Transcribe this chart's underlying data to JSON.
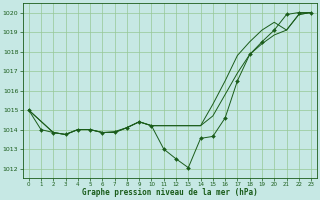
{
  "title": "Graphe pression niveau de la mer (hPa)",
  "background_color": "#c6e8e4",
  "grid_color": "#96c896",
  "line_color": "#1a5c1a",
  "xlim": [
    -0.5,
    23.5
  ],
  "ylim": [
    1011.5,
    1020.5
  ],
  "yticks": [
    1012,
    1013,
    1014,
    1015,
    1016,
    1017,
    1018,
    1019,
    1020
  ],
  "xticks": [
    0,
    1,
    2,
    3,
    4,
    5,
    6,
    7,
    8,
    9,
    10,
    11,
    12,
    13,
    14,
    15,
    16,
    17,
    18,
    19,
    20,
    21,
    22,
    23
  ],
  "series1": {
    "x": [
      0,
      1,
      2,
      3,
      4,
      5,
      6,
      7,
      8,
      9,
      10,
      11,
      12,
      13,
      14,
      15,
      16,
      17,
      18,
      19,
      20,
      21,
      22,
      23
    ],
    "y": [
      1015.0,
      1014.0,
      1013.85,
      1013.75,
      1014.0,
      1014.0,
      1013.85,
      1013.9,
      1014.1,
      1014.4,
      1014.2,
      1013.0,
      1012.5,
      1012.05,
      1013.55,
      1013.65,
      1014.6,
      1016.5,
      1017.85,
      1018.5,
      1019.1,
      1019.9,
      1020.0,
      1020.0
    ]
  },
  "series2": {
    "x": [
      0,
      2,
      3,
      4,
      5,
      6,
      7,
      8,
      9,
      10,
      14,
      15,
      16,
      17,
      18,
      19,
      20,
      21,
      22,
      23
    ],
    "y": [
      1015.0,
      1013.85,
      1013.75,
      1014.0,
      1014.0,
      1013.85,
      1013.85,
      1014.1,
      1014.4,
      1014.2,
      1014.2,
      1015.3,
      1016.5,
      1017.8,
      1018.5,
      1019.1,
      1019.5,
      1019.1,
      1019.9,
      1020.0
    ]
  },
  "series3": {
    "x": [
      0,
      2,
      3,
      4,
      5,
      6,
      7,
      8,
      9,
      10,
      14,
      15,
      16,
      17,
      18,
      19,
      20,
      21,
      22,
      23
    ],
    "y": [
      1015.0,
      1013.85,
      1013.75,
      1014.0,
      1014.0,
      1013.85,
      1013.85,
      1014.1,
      1014.4,
      1014.2,
      1014.2,
      1014.7,
      1015.8,
      1016.9,
      1017.85,
      1018.4,
      1018.85,
      1019.1,
      1019.9,
      1020.0
    ]
  }
}
